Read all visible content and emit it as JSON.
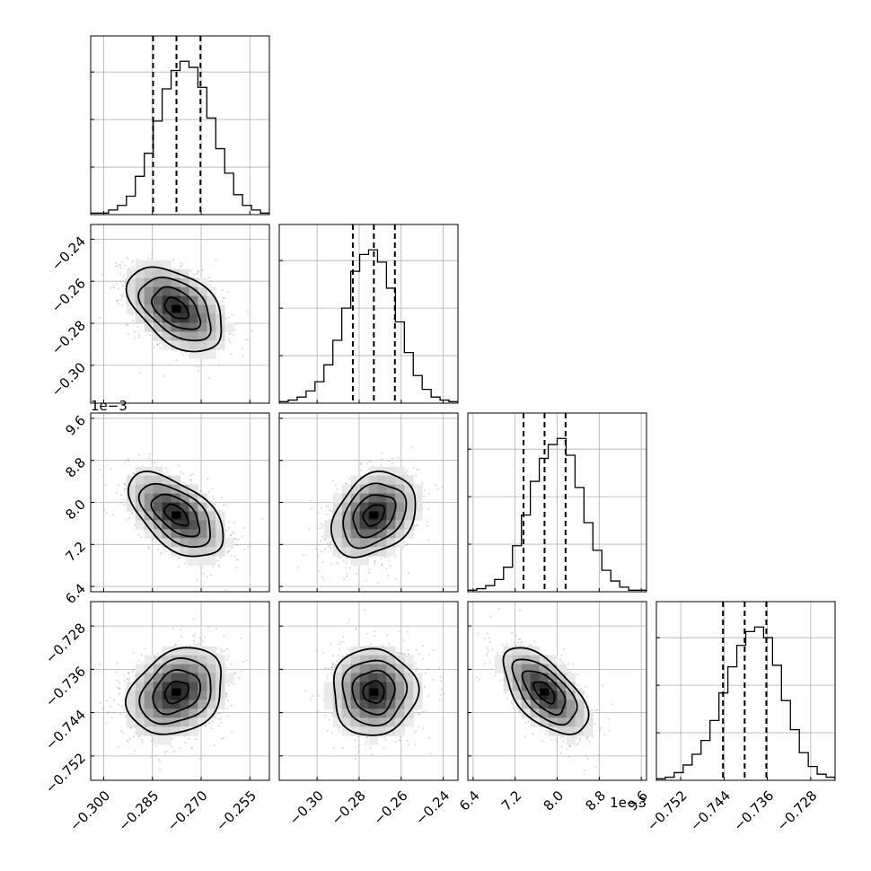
{
  "chart_data": {
    "type": "corner",
    "n_params": 4,
    "grid": true,
    "params": [
      {
        "range": [
          -0.304,
          -0.249
        ],
        "ticks": [
          -0.3,
          -0.285,
          -0.27,
          -0.255
        ],
        "tick_labels": [
          "−0.300",
          "−0.285",
          "−0.270",
          "−0.255"
        ],
        "offset_text": "",
        "median": -0.2776,
        "q16": -0.2848,
        "q84": -0.2702,
        "hist": [
          0.01,
          0.01,
          0.03,
          0.06,
          0.12,
          0.25,
          0.4,
          0.61,
          0.82,
          0.94,
          1.0,
          0.96,
          0.83,
          0.63,
          0.43,
          0.27,
          0.13,
          0.06,
          0.03,
          0.01
        ]
      },
      {
        "range": [
          -0.318,
          -0.233
        ],
        "ticks": [
          -0.3,
          -0.28,
          -0.26,
          -0.24
        ],
        "tick_labels": [
          "−0.30",
          "−0.28",
          "−0.26",
          "−0.24"
        ],
        "offset_text": "",
        "median": -0.273,
        "q16": -0.283,
        "q84": -0.263,
        "hist": [
          0.01,
          0.02,
          0.04,
          0.08,
          0.14,
          0.25,
          0.41,
          0.62,
          0.86,
          0.97,
          1.0,
          0.92,
          0.75,
          0.53,
          0.33,
          0.18,
          0.09,
          0.04,
          0.02,
          0.01
        ]
      },
      {
        "range": [
          6.3,
          9.7
        ],
        "ticks": [
          6.4,
          7.2,
          8.0,
          8.8,
          9.6
        ],
        "tick_labels": [
          "6.4",
          "7.2",
          "8.0",
          "8.8",
          "9.6"
        ],
        "offset_text": "1e−3",
        "median": 7.76,
        "q16": 7.36,
        "q84": 8.16,
        "hist": [
          0.01,
          0.02,
          0.04,
          0.08,
          0.16,
          0.3,
          0.5,
          0.72,
          0.87,
          0.96,
          1.0,
          0.89,
          0.68,
          0.45,
          0.27,
          0.14,
          0.07,
          0.03,
          0.01,
          0.01
        ]
      },
      {
        "range": [
          -0.7565,
          -0.7235
        ],
        "ticks": [
          -0.752,
          -0.744,
          -0.736,
          -0.728
        ],
        "tick_labels": [
          "−0.752",
          "−0.744",
          "−0.736",
          "−0.728"
        ],
        "offset_text": "",
        "median": -0.7402,
        "q16": -0.7442,
        "q84": -0.7362,
        "hist": [
          0.01,
          0.02,
          0.05,
          0.1,
          0.17,
          0.26,
          0.39,
          0.57,
          0.74,
          0.88,
          0.97,
          1.0,
          0.93,
          0.75,
          0.52,
          0.33,
          0.18,
          0.09,
          0.04,
          0.02
        ]
      }
    ],
    "correlations": [
      [
        1.0,
        -0.45,
        -0.55,
        0.25
      ],
      [
        -0.45,
        1.0,
        0.3,
        0.0
      ],
      [
        -0.55,
        0.3,
        1.0,
        -0.6
      ],
      [
        0.25,
        0.0,
        -0.6,
        1.0
      ]
    ],
    "contour_levels": [
      0.5,
      1.0,
      1.5,
      2.0
    ]
  }
}
